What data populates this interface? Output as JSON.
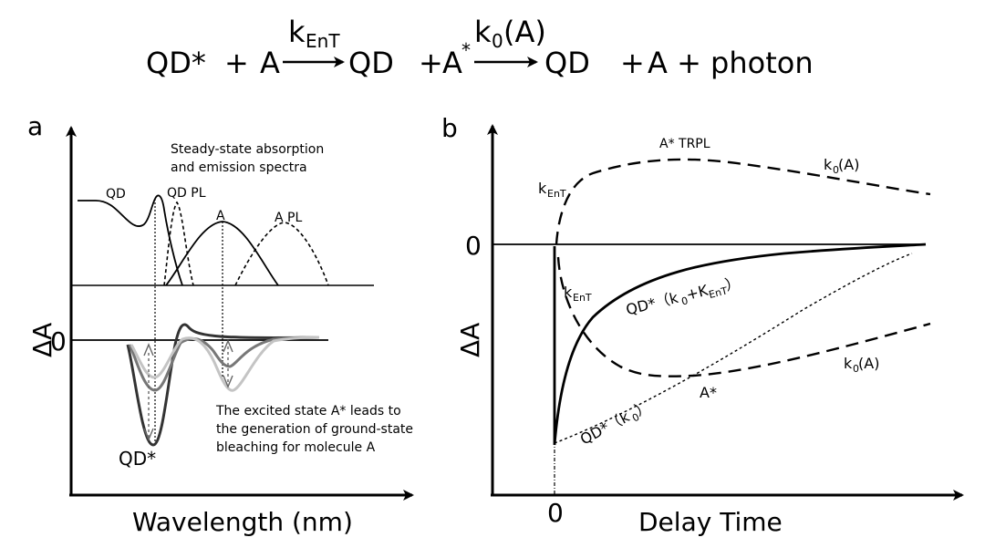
{
  "equation": {
    "qd_star": "QD*",
    "plus1": "+",
    "a1": "A",
    "k_ent_main": "k",
    "k_ent_sub": "EnT",
    "qd1": "QD",
    "plus2": "+",
    "a_star_main": "A",
    "a_star_sup": "*",
    "k0_main": "k",
    "k0_sub": "0",
    "k0_arg": "(A)",
    "qd2": "QD",
    "plus3": "+",
    "a2": "A + photon"
  },
  "panel_a": {
    "label": "a",
    "spectra_title_line1": "Steady-state absorption",
    "spectra_title_line2": "and emission spectra",
    "qd": "QD",
    "qd_pl": "QD PL",
    "a": "A",
    "a_pl": "A PL",
    "zero": "0",
    "ylabel": "ΔA",
    "xlabel": "Wavelength (nm)",
    "qd_star": "QD*",
    "note_line1": "The excited state A* leads to",
    "note_line2": "the generation of ground-state",
    "note_line3": "bleaching for molecule A"
  },
  "panel_b": {
    "label": "b",
    "a_star_trpl": "A* TRPL",
    "k0a_top_main": "k",
    "k0a_top_sub": "0",
    "k0a_top_arg": "(A)",
    "kent_top_main": "k",
    "kent_top_sub": "EnT",
    "zero_y": "0",
    "kent_mid_main": "k",
    "kent_mid_sub": "EnT",
    "qd_star_fast": "QD*（k",
    "qd_star_fast_sub0": "0",
    "qd_star_fast_plus": "+K",
    "qd_star_fast_sub": "EnT",
    "qd_star_fast_close": "）",
    "ylabel": "ΔA",
    "k0a_bot_main": "k",
    "k0a_bot_sub": "0",
    "k0a_bot_arg": "(A)",
    "a_star": "A*",
    "qd_star_slow": "QD*（k",
    "qd_star_slow_sub": "0",
    "qd_star_slow_close": "）",
    "zero_x": "0",
    "xlabel": "Delay Time"
  }
}
